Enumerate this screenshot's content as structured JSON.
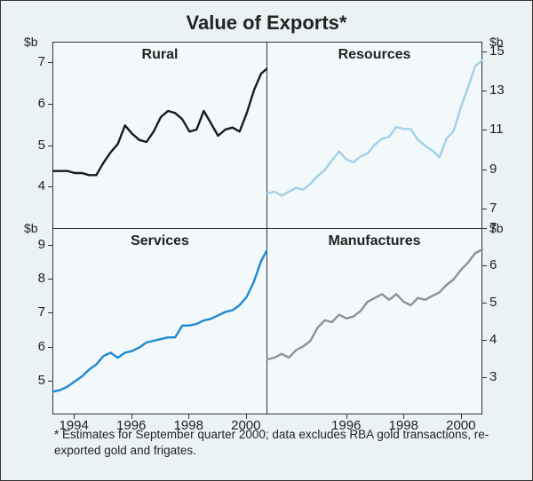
{
  "title": "Value of Exports*",
  "footnote": "* Estimates for September quarter 2000; data excludes RBA gold transactions, re-exported gold and frigates.",
  "unit_label": "$b",
  "x_axis": {
    "start": 1993.25,
    "end": 2000.75,
    "ticks_left": [
      1994,
      1996,
      1998,
      2000
    ],
    "ticks_right": [
      1996,
      1998,
      2000
    ]
  },
  "panels": {
    "rural": {
      "title": "Rural",
      "color": "#1a1a1a",
      "line_width": 2.4,
      "ylim": [
        3,
        7.5
      ],
      "yticks": [
        4,
        5,
        6,
        7
      ],
      "data": [
        [
          1993.25,
          4.4
        ],
        [
          1993.5,
          4.4
        ],
        [
          1993.75,
          4.4
        ],
        [
          1994,
          4.35
        ],
        [
          1994.25,
          4.35
        ],
        [
          1994.5,
          4.3
        ],
        [
          1994.75,
          4.3
        ],
        [
          1995,
          4.6
        ],
        [
          1995.25,
          4.85
        ],
        [
          1995.5,
          5.05
        ],
        [
          1995.75,
          5.5
        ],
        [
          1996,
          5.3
        ],
        [
          1996.25,
          5.15
        ],
        [
          1996.5,
          5.1
        ],
        [
          1996.75,
          5.35
        ],
        [
          1997,
          5.7
        ],
        [
          1997.25,
          5.85
        ],
        [
          1997.5,
          5.8
        ],
        [
          1997.75,
          5.65
        ],
        [
          1998,
          5.35
        ],
        [
          1998.25,
          5.4
        ],
        [
          1998.5,
          5.85
        ],
        [
          1998.75,
          5.55
        ],
        [
          1999,
          5.25
        ],
        [
          1999.25,
          5.4
        ],
        [
          1999.5,
          5.45
        ],
        [
          1999.75,
          5.35
        ],
        [
          2000,
          5.8
        ],
        [
          2000.25,
          6.35
        ],
        [
          2000.5,
          6.75
        ],
        [
          2000.75,
          6.9
        ]
      ]
    },
    "resources": {
      "title": "Resources",
      "color": "#a1d1e8",
      "line_width": 2.4,
      "ylim": [
        6,
        15.5
      ],
      "yticks": [
        7,
        9,
        11,
        13,
        15
      ],
      "data": [
        [
          1993.25,
          7.8
        ],
        [
          1993.5,
          7.9
        ],
        [
          1993.75,
          7.7
        ],
        [
          1994,
          7.9
        ],
        [
          1994.25,
          8.1
        ],
        [
          1994.5,
          8.0
        ],
        [
          1994.75,
          8.3
        ],
        [
          1995,
          8.7
        ],
        [
          1995.25,
          9.0
        ],
        [
          1995.5,
          9.5
        ],
        [
          1995.75,
          9.95
        ],
        [
          1996,
          9.55
        ],
        [
          1996.25,
          9.4
        ],
        [
          1996.5,
          9.7
        ],
        [
          1996.75,
          9.85
        ],
        [
          1997,
          10.3
        ],
        [
          1997.25,
          10.6
        ],
        [
          1997.5,
          10.7
        ],
        [
          1997.75,
          11.2
        ],
        [
          1998,
          11.1
        ],
        [
          1998.25,
          11.1
        ],
        [
          1998.5,
          10.55
        ],
        [
          1998.75,
          10.25
        ],
        [
          1999,
          10.0
        ],
        [
          1999.25,
          9.65
        ],
        [
          1999.5,
          10.6
        ],
        [
          1999.75,
          11.0
        ],
        [
          2000,
          12.2
        ],
        [
          2000.25,
          13.2
        ],
        [
          2000.5,
          14.3
        ],
        [
          2000.75,
          14.6
        ]
      ]
    },
    "services": {
      "title": "Services",
      "color": "#1b8ad4",
      "line_width": 2.4,
      "ylim": [
        4,
        9.5
      ],
      "yticks": [
        5,
        6,
        7,
        8,
        9
      ],
      "data": [
        [
          1993.25,
          4.7
        ],
        [
          1993.5,
          4.75
        ],
        [
          1993.75,
          4.85
        ],
        [
          1994,
          5.0
        ],
        [
          1994.25,
          5.15
        ],
        [
          1994.5,
          5.35
        ],
        [
          1994.75,
          5.5
        ],
        [
          1995,
          5.75
        ],
        [
          1995.25,
          5.85
        ],
        [
          1995.5,
          5.7
        ],
        [
          1995.75,
          5.85
        ],
        [
          1996,
          5.9
        ],
        [
          1996.25,
          6.0
        ],
        [
          1996.5,
          6.15
        ],
        [
          1996.75,
          6.2
        ],
        [
          1997,
          6.25
        ],
        [
          1997.25,
          6.3
        ],
        [
          1997.5,
          6.3
        ],
        [
          1997.75,
          6.65
        ],
        [
          1998,
          6.65
        ],
        [
          1998.25,
          6.7
        ],
        [
          1998.5,
          6.8
        ],
        [
          1998.75,
          6.85
        ],
        [
          1999,
          6.95
        ],
        [
          1999.25,
          7.05
        ],
        [
          1999.5,
          7.1
        ],
        [
          1999.75,
          7.25
        ],
        [
          2000,
          7.5
        ],
        [
          2000.25,
          7.95
        ],
        [
          2000.5,
          8.55
        ],
        [
          2000.75,
          8.95
        ]
      ]
    },
    "manufactures": {
      "title": "Manufactures",
      "color": "#8f9294",
      "line_width": 2.4,
      "ylim": [
        2,
        7
      ],
      "yticks": [
        3,
        4,
        5,
        6,
        7
      ],
      "data": [
        [
          1993.25,
          3.5
        ],
        [
          1993.5,
          3.55
        ],
        [
          1993.75,
          3.65
        ],
        [
          1994,
          3.55
        ],
        [
          1994.25,
          3.75
        ],
        [
          1994.5,
          3.85
        ],
        [
          1994.75,
          4.0
        ],
        [
          1995,
          4.35
        ],
        [
          1995.25,
          4.55
        ],
        [
          1995.5,
          4.5
        ],
        [
          1995.75,
          4.7
        ],
        [
          1996,
          4.6
        ],
        [
          1996.25,
          4.65
        ],
        [
          1996.5,
          4.8
        ],
        [
          1996.75,
          5.05
        ],
        [
          1997,
          5.15
        ],
        [
          1997.25,
          5.25
        ],
        [
          1997.5,
          5.1
        ],
        [
          1997.75,
          5.25
        ],
        [
          1998,
          5.05
        ],
        [
          1998.25,
          4.95
        ],
        [
          1998.5,
          5.15
        ],
        [
          1998.75,
          5.1
        ],
        [
          1999,
          5.2
        ],
        [
          1999.25,
          5.3
        ],
        [
          1999.5,
          5.5
        ],
        [
          1999.75,
          5.65
        ],
        [
          2000,
          5.9
        ],
        [
          2000.25,
          6.1
        ],
        [
          2000.5,
          6.35
        ],
        [
          2000.75,
          6.45
        ]
      ]
    }
  }
}
